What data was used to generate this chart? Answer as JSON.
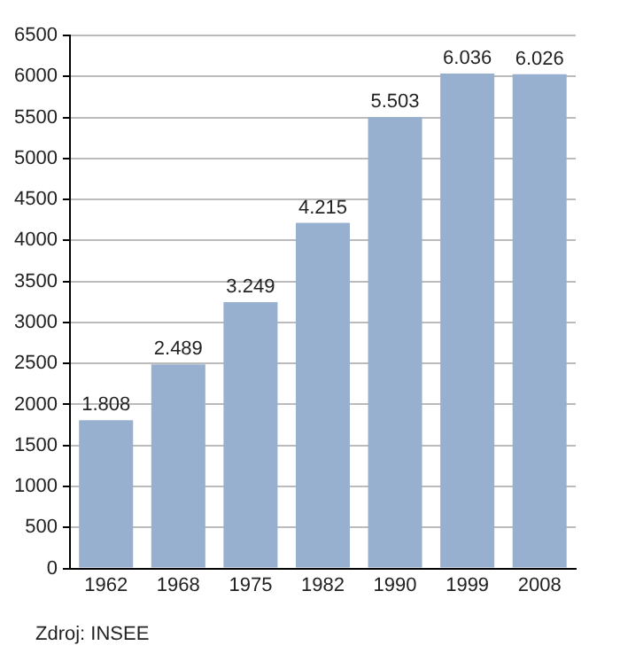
{
  "chart_data": {
    "type": "bar",
    "categories": [
      "1962",
      "1968",
      "1975",
      "1982",
      "1990",
      "1999",
      "2008"
    ],
    "values": [
      1808,
      2489,
      3249,
      4215,
      5503,
      6036,
      6026
    ],
    "value_labels": [
      "1.808",
      "2.489",
      "3.249",
      "4.215",
      "5.503",
      "6.036",
      "6.026"
    ],
    "color": "#97b0cf",
    "ylim": [
      0,
      6500
    ],
    "yticks": [
      0,
      500,
      1000,
      1500,
      2000,
      2500,
      3000,
      3500,
      4000,
      4500,
      5000,
      5500,
      6000,
      6500
    ],
    "grid": "y",
    "legend": false,
    "annotations": [
      "Zdroj: INSEE"
    ]
  }
}
